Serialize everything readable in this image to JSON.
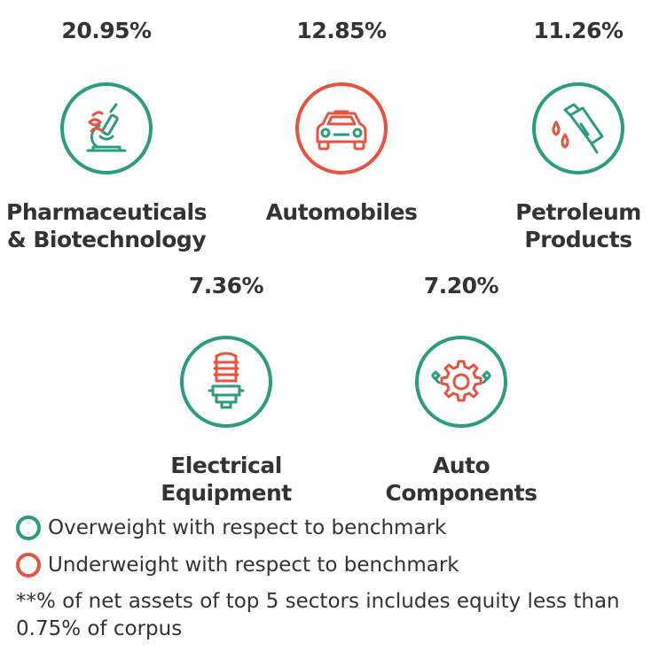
{
  "colors": {
    "overweight": "#2a9d7e",
    "underweight": "#e9523f",
    "text": "#333333"
  },
  "sectors": [
    {
      "percent": "20.95%",
      "name_line1": "Pharmaceuticals",
      "name_line2": "& Biotechnology",
      "icon": "microscope-icon",
      "status": "overweight"
    },
    {
      "percent": "12.85%",
      "name_line1": "Automobiles",
      "name_line2": "",
      "icon": "car-icon",
      "status": "underweight"
    },
    {
      "percent": "11.26%",
      "name_line1": "Petroleum",
      "name_line2": "Products",
      "icon": "fuel-nozzle-icon",
      "status": "overweight"
    },
    {
      "percent": "7.36%",
      "name_line1": "Electrical",
      "name_line2": "Equipment",
      "icon": "light-bulb-icon",
      "status": "overweight"
    },
    {
      "percent": "7.20%",
      "name_line1": "Auto",
      "name_line2": "Components",
      "icon": "gear-icon",
      "status": "overweight"
    }
  ],
  "legend": {
    "overweight_label": "Overweight with respect to benchmark",
    "underweight_label": "Underweight with respect to benchmark"
  },
  "footnote": "**% of net assets of top 5 sectors includes equity less than 0.75% of corpus"
}
